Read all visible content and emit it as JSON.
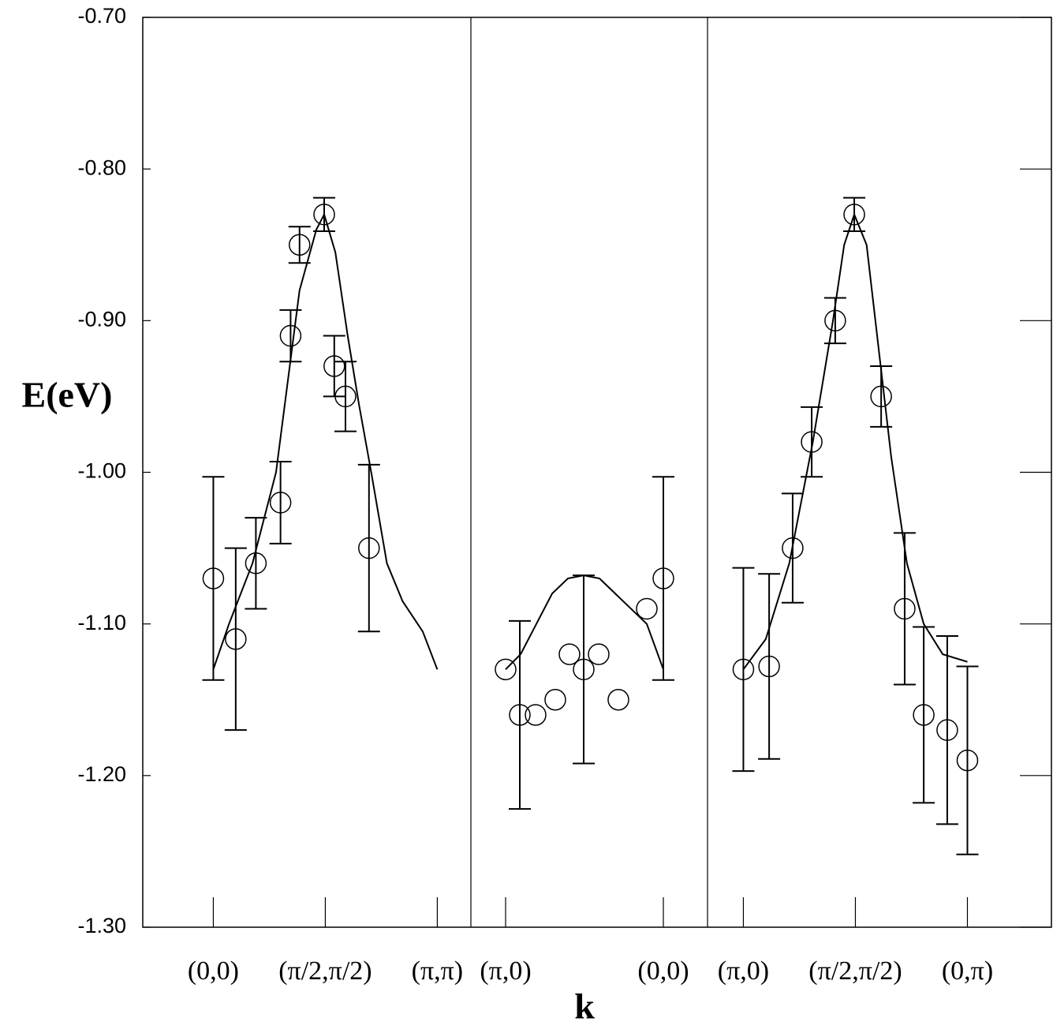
{
  "chart_data": [
    {
      "type": "scatter",
      "ylabel": "E(eV)",
      "color": "#000000",
      "ylim": [
        -1.3,
        -0.7
      ],
      "yticks": [
        {
          "value": -0.7,
          "label": "-0.70"
        },
        {
          "value": -0.8,
          "label": "-0.80"
        },
        {
          "value": -0.9,
          "label": "-0.90"
        },
        {
          "value": -1.0,
          "label": "-1.00"
        },
        {
          "value": -1.1,
          "label": "-1.10"
        },
        {
          "value": -1.2,
          "label": "-1.20"
        },
        {
          "value": -1.3,
          "label": "-1.30"
        }
      ],
      "xlim": [
        -0.63,
        2.3
      ],
      "xticks": [
        {
          "value": 0,
          "label": "(0,0)"
        },
        {
          "value": 1,
          "label": "(π/2,π/2)"
        },
        {
          "value": 2,
          "label": "(π,π)"
        }
      ],
      "points": {
        "x": [
          0,
          0.2,
          0.38,
          0.6,
          0.69,
          0.77,
          0.99,
          1.08,
          1.18,
          1.39
        ],
        "values": [
          -1.07,
          -1.11,
          -1.06,
          -1.02,
          -0.91,
          -0.85,
          -0.83,
          -0.93,
          -0.95,
          -1.05
        ],
        "errors": [
          0.067,
          0.06,
          0.03,
          0.027,
          0.017,
          0.012,
          0.011,
          0.02,
          0.023,
          0.055
        ]
      },
      "curve": {
        "x": [
          0,
          0.14,
          0.35,
          0.56,
          0.77,
          0.92,
          0.99,
          1.09,
          1.2,
          1.3,
          1.41,
          1.55,
          1.69,
          1.87,
          2.0
        ],
        "values": [
          -1.13,
          -1.1,
          -1.06,
          -1.0,
          -0.88,
          -0.84,
          -0.83,
          -0.855,
          -0.91,
          -0.955,
          -1.0,
          -1.06,
          -1.085,
          -1.105,
          -1.13
        ]
      }
    },
    {
      "type": "scatter",
      "xlabel": "k",
      "color": "#000000",
      "ylim": [
        -1.3,
        -0.7
      ],
      "xlim": [
        -0.22,
        1.28
      ],
      "xticks": [
        {
          "value": 0,
          "label": "(π,0)"
        },
        {
          "value": 1,
          "label": "(0,0)"
        }
      ],
      "points": {
        "x": [
          0,
          0.09,
          0.19,
          0.315,
          0.405,
          0.495,
          0.59,
          0.715,
          0.895,
          1.0
        ],
        "values": [
          -1.13,
          -1.16,
          -1.16,
          -1.15,
          -1.12,
          -1.13,
          -1.12,
          -1.15,
          -1.09,
          -1.07
        ],
        "errors": [
          null,
          0.062,
          null,
          null,
          null,
          0.062,
          null,
          null,
          null,
          0.067
        ]
      },
      "curve": {
        "x": [
          0,
          0.095,
          0.195,
          0.295,
          0.395,
          0.495,
          0.595,
          0.695,
          0.795,
          0.895,
          1.0
        ],
        "values": [
          -1.13,
          -1.12,
          -1.1,
          -1.08,
          -1.07,
          -1.068,
          -1.07,
          -1.08,
          -1.09,
          -1.1,
          -1.13
        ]
      }
    },
    {
      "type": "scatter",
      "color": "#000000",
      "ylim": [
        -1.3,
        -0.7
      ],
      "xlim": [
        -0.32,
        2.75
      ],
      "xticks": [
        {
          "value": 0,
          "label": "(π,0)"
        },
        {
          "value": 1,
          "label": "(π/2,π/2)"
        },
        {
          "value": 2,
          "label": "(0,π)"
        }
      ],
      "points": {
        "x": [
          0,
          0.23,
          0.44,
          0.61,
          0.82,
          0.99,
          1.23,
          1.44,
          1.61,
          1.82,
          2.0
        ],
        "values": [
          -1.13,
          -1.128,
          -1.05,
          -0.98,
          -0.9,
          -0.83,
          -0.95,
          -1.09,
          -1.16,
          -1.17,
          -1.19
        ],
        "errors": [
          0.067,
          0.061,
          0.036,
          0.023,
          0.015,
          0.011,
          0.02,
          0.05,
          0.058,
          0.062,
          0.062
        ]
      },
      "curve": {
        "x": [
          0,
          0.2,
          0.41,
          0.62,
          0.8,
          0.9,
          0.99,
          1.1,
          1.21,
          1.32,
          1.46,
          1.61,
          1.78,
          2.0
        ],
        "values": [
          -1.13,
          -1.11,
          -1.06,
          -0.98,
          -0.9,
          -0.85,
          -0.83,
          -0.85,
          -0.92,
          -0.99,
          -1.06,
          -1.1,
          -1.12,
          -1.125
        ]
      }
    }
  ]
}
